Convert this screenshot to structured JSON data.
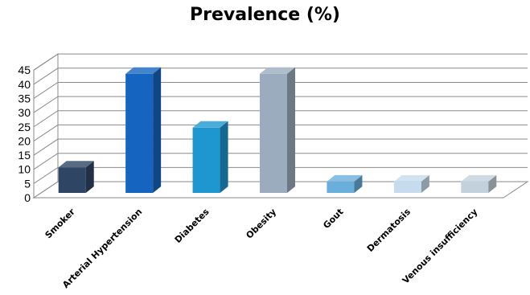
{
  "chart_data": {
    "type": "bar",
    "title": "Prevalence (%)",
    "xlabel": "",
    "ylabel": "",
    "ylim": [
      0,
      45
    ],
    "yticks": [
      0,
      5,
      10,
      15,
      20,
      25,
      30,
      35,
      40,
      45
    ],
    "grid": true,
    "style": "3d-column",
    "categories": [
      "Smoker",
      "Arterial Hypertension",
      "Diabetes",
      "Obesity",
      "Gout",
      "Dermatosis",
      "Venous insufficiency"
    ],
    "values": [
      9,
      42,
      23,
      42,
      4,
      4,
      4
    ],
    "colors": [
      "#2f4564",
      "#1565c0",
      "#1e96cf",
      "#9aacbd",
      "#6aaedb",
      "#c6dcee",
      "#c3d1dc"
    ]
  }
}
